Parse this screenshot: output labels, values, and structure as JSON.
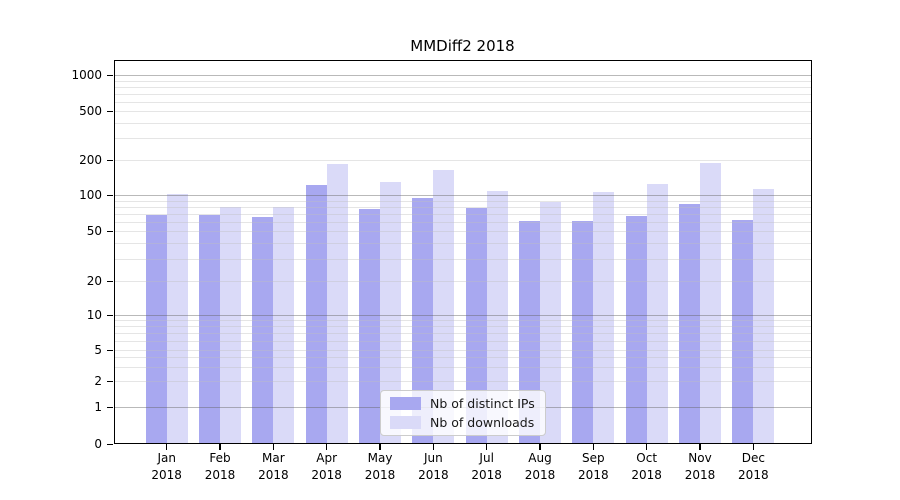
{
  "title": "MMDiff2 2018",
  "chart_data": {
    "type": "bar",
    "title": "MMDiff2 2018",
    "categories": [
      "Jan 2018",
      "Feb 2018",
      "Mar 2018",
      "Apr 2018",
      "May 2018",
      "Jun 2018",
      "Jul 2018",
      "Aug 2018",
      "Sep 2018",
      "Oct 2018",
      "Nov 2018",
      "Dec 2018"
    ],
    "series": [
      {
        "name": "Nb of distinct IPs",
        "color": "#a8a8f0",
        "values": [
          69,
          69,
          66,
          123,
          78,
          95,
          79,
          61,
          62,
          68,
          86,
          63
        ]
      },
      {
        "name": "Nb of downloads",
        "color": "#dadaf8",
        "values": [
          103,
          80,
          81,
          186,
          131,
          167,
          109,
          89,
          108,
          125,
          190,
          114
        ]
      }
    ],
    "xlabel": "",
    "ylabel": "",
    "yscale": "symlog",
    "y_ticks": [
      0,
      1,
      2,
      5,
      10,
      20,
      50,
      100,
      200,
      500,
      1000
    ],
    "ylim": [
      0,
      1400
    ],
    "grid": true,
    "legend_position": "lower center"
  }
}
